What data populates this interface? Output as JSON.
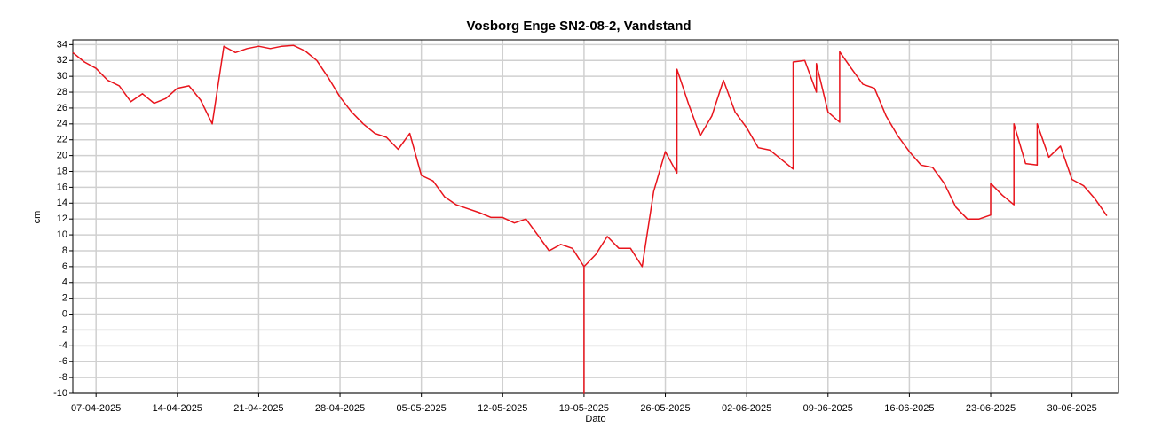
{
  "chart_data": {
    "type": "line",
    "title": "Vosborg Enge SN2-08-2, Vandstand",
    "xlabel": "Dato",
    "ylabel": "cm",
    "grid": true,
    "xlim": [
      "05-04-2025",
      "04-07-2025"
    ],
    "xticks": [
      "07-04-2025",
      "14-04-2025",
      "21-04-2025",
      "28-04-2025",
      "05-05-2025",
      "12-05-2025",
      "19-05-2025",
      "26-05-2025",
      "02-06-2025",
      "09-06-2025",
      "16-06-2025",
      "23-06-2025",
      "30-06-2025"
    ],
    "ylim": [
      -10,
      34.6
    ],
    "yticks": [
      -10,
      -8,
      -6,
      -4,
      -2,
      0,
      2,
      4,
      6,
      8,
      10,
      12,
      14,
      16,
      18,
      20,
      22,
      24,
      26,
      28,
      30,
      32,
      34
    ],
    "x": [
      "05-04-2025",
      "06-04-2025",
      "07-04-2025",
      "08-04-2025",
      "09-04-2025",
      "10-04-2025",
      "11-04-2025",
      "12-04-2025",
      "13-04-2025",
      "14-04-2025",
      "15-04-2025",
      "16-04-2025",
      "17-04-2025",
      "18-04-2025",
      "19-04-2025",
      "20-04-2025",
      "21-04-2025",
      "22-04-2025",
      "23-04-2025",
      "24-04-2025",
      "25-04-2025",
      "26-04-2025",
      "27-04-2025",
      "28-04-2025",
      "29-04-2025",
      "30-04-2025",
      "01-05-2025",
      "02-05-2025",
      "03-05-2025",
      "04-05-2025",
      "05-05-2025",
      "06-05-2025",
      "07-05-2025",
      "08-05-2025",
      "09-05-2025",
      "10-05-2025",
      "11-05-2025",
      "12-05-2025",
      "13-05-2025",
      "14-05-2025",
      "15-05-2025",
      "16-05-2025",
      "17-05-2025",
      "18-05-2025",
      "19-05-2025",
      "19-05-2025",
      "19-05-2025",
      "20-05-2025",
      "21-05-2025",
      "22-05-2025",
      "23-05-2025",
      "24-05-2025",
      "25-05-2025",
      "26-05-2025",
      "27-05-2025",
      "27-05-2025",
      "28-05-2025",
      "29-05-2025",
      "30-05-2025",
      "31-05-2025",
      "01-06-2025",
      "02-06-2025",
      "03-06-2025",
      "04-06-2025",
      "05-06-2025",
      "06-06-2025",
      "06-06-2025",
      "07-06-2025",
      "08-06-2025",
      "08-06-2025",
      "09-06-2025",
      "10-06-2025",
      "10-06-2025",
      "11-06-2025",
      "12-06-2025",
      "13-06-2025",
      "14-06-2025",
      "15-06-2025",
      "16-06-2025",
      "17-06-2025",
      "18-06-2025",
      "19-06-2025",
      "20-06-2025",
      "21-06-2025",
      "22-06-2025",
      "23-06-2025",
      "23-06-2025",
      "24-06-2025",
      "25-06-2025",
      "25-06-2025",
      "26-06-2025",
      "27-06-2025",
      "27-06-2025",
      "28-06-2025",
      "29-06-2025",
      "30-06-2025",
      "01-07-2025",
      "02-07-2025",
      "03-07-2025"
    ],
    "series": [
      {
        "color": "#e8141c",
        "values": [
          33,
          31.8,
          31,
          29.5,
          28.8,
          26.8,
          27.8,
          26.6,
          27.2,
          28.5,
          28.8,
          27,
          24,
          33.8,
          33,
          33.5,
          33.8,
          33.5,
          33.8,
          33.9,
          33.2,
          32,
          29.8,
          27.4,
          25.5,
          24,
          22.8,
          22.3,
          20.8,
          22.8,
          17.5,
          16.8,
          14.8,
          13.8,
          13.3,
          12.8,
          12.2,
          12.2,
          11.5,
          12,
          10,
          8,
          8.8,
          8.3,
          6,
          -10,
          6,
          7.5,
          9.8,
          8.3,
          8.3,
          6,
          15.5,
          20.5,
          17.8,
          30.9,
          26.5,
          22.5,
          25,
          29.5,
          25.5,
          23.5,
          21,
          20.7,
          19.5,
          18.3,
          31.8,
          32,
          28,
          31.6,
          25.5,
          24.2,
          33.1,
          31,
          29,
          28.5,
          25,
          22.5,
          20.5,
          18.8,
          18.5,
          16.5,
          13.5,
          12,
          12,
          12.5,
          16.5,
          15,
          13.8,
          24,
          19,
          18.8,
          24,
          19.8,
          21.2,
          17,
          16.2,
          14.5,
          12.4
        ]
      }
    ]
  }
}
